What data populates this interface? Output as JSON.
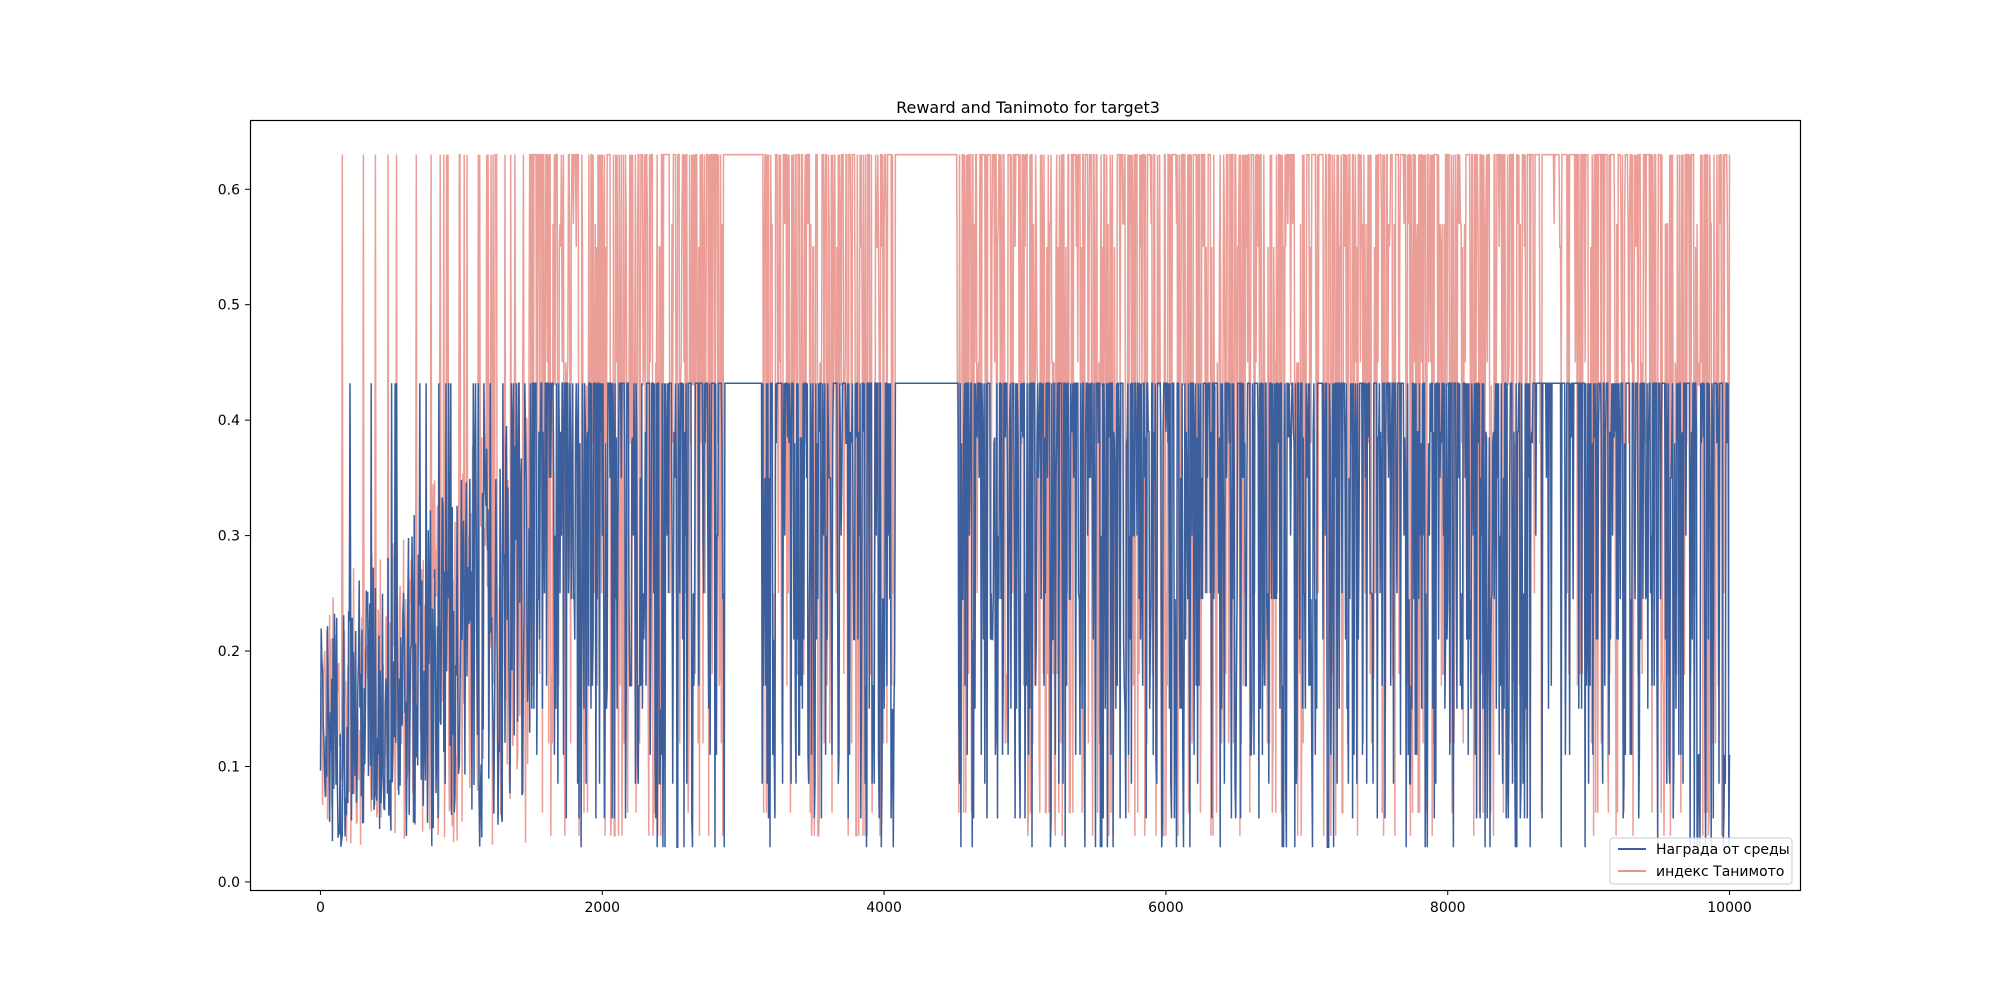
{
  "chart_data": {
    "type": "line",
    "title": "Reward and Tanimoto for target3",
    "xlabel": "",
    "ylabel": "",
    "xlim": [
      -500,
      10500
    ],
    "ylim": [
      -0.007,
      0.66
    ],
    "xticks": [
      0,
      2000,
      4000,
      6000,
      8000,
      10000
    ],
    "yticks": [
      0.0,
      0.1,
      0.2,
      0.3,
      0.4,
      0.5,
      0.6
    ],
    "grid": false,
    "legend_position": "lower-right",
    "x_range": [
      0,
      10000
    ],
    "series": [
      {
        "name": "Награда от среды",
        "color": "#3c5f9c",
        "upper_level": 0.432,
        "low_values": [
          0.03,
          0.055,
          0.085,
          0.11,
          0.15,
          0.17,
          0.21,
          0.245,
          0.25,
          0.3,
          0.35,
          0.38,
          0.385,
          0.39
        ],
        "initial_range": [
          0.03,
          0.43
        ],
        "plateau_gaps": [
          [
            2870,
            3130
          ],
          [
            4080,
            4510
          ]
        ]
      },
      {
        "name": "индекс Танимото",
        "color": "#e8938c",
        "upper_level": 0.63,
        "low_values": [
          0.04,
          0.06,
          0.12,
          0.17,
          0.18,
          0.25,
          0.38,
          0.43,
          0.45,
          0.55,
          0.57
        ],
        "initial_range": [
          0.03,
          0.45
        ],
        "plateau_gaps": [
          [
            2870,
            3130
          ],
          [
            4080,
            4510
          ]
        ]
      }
    ]
  }
}
